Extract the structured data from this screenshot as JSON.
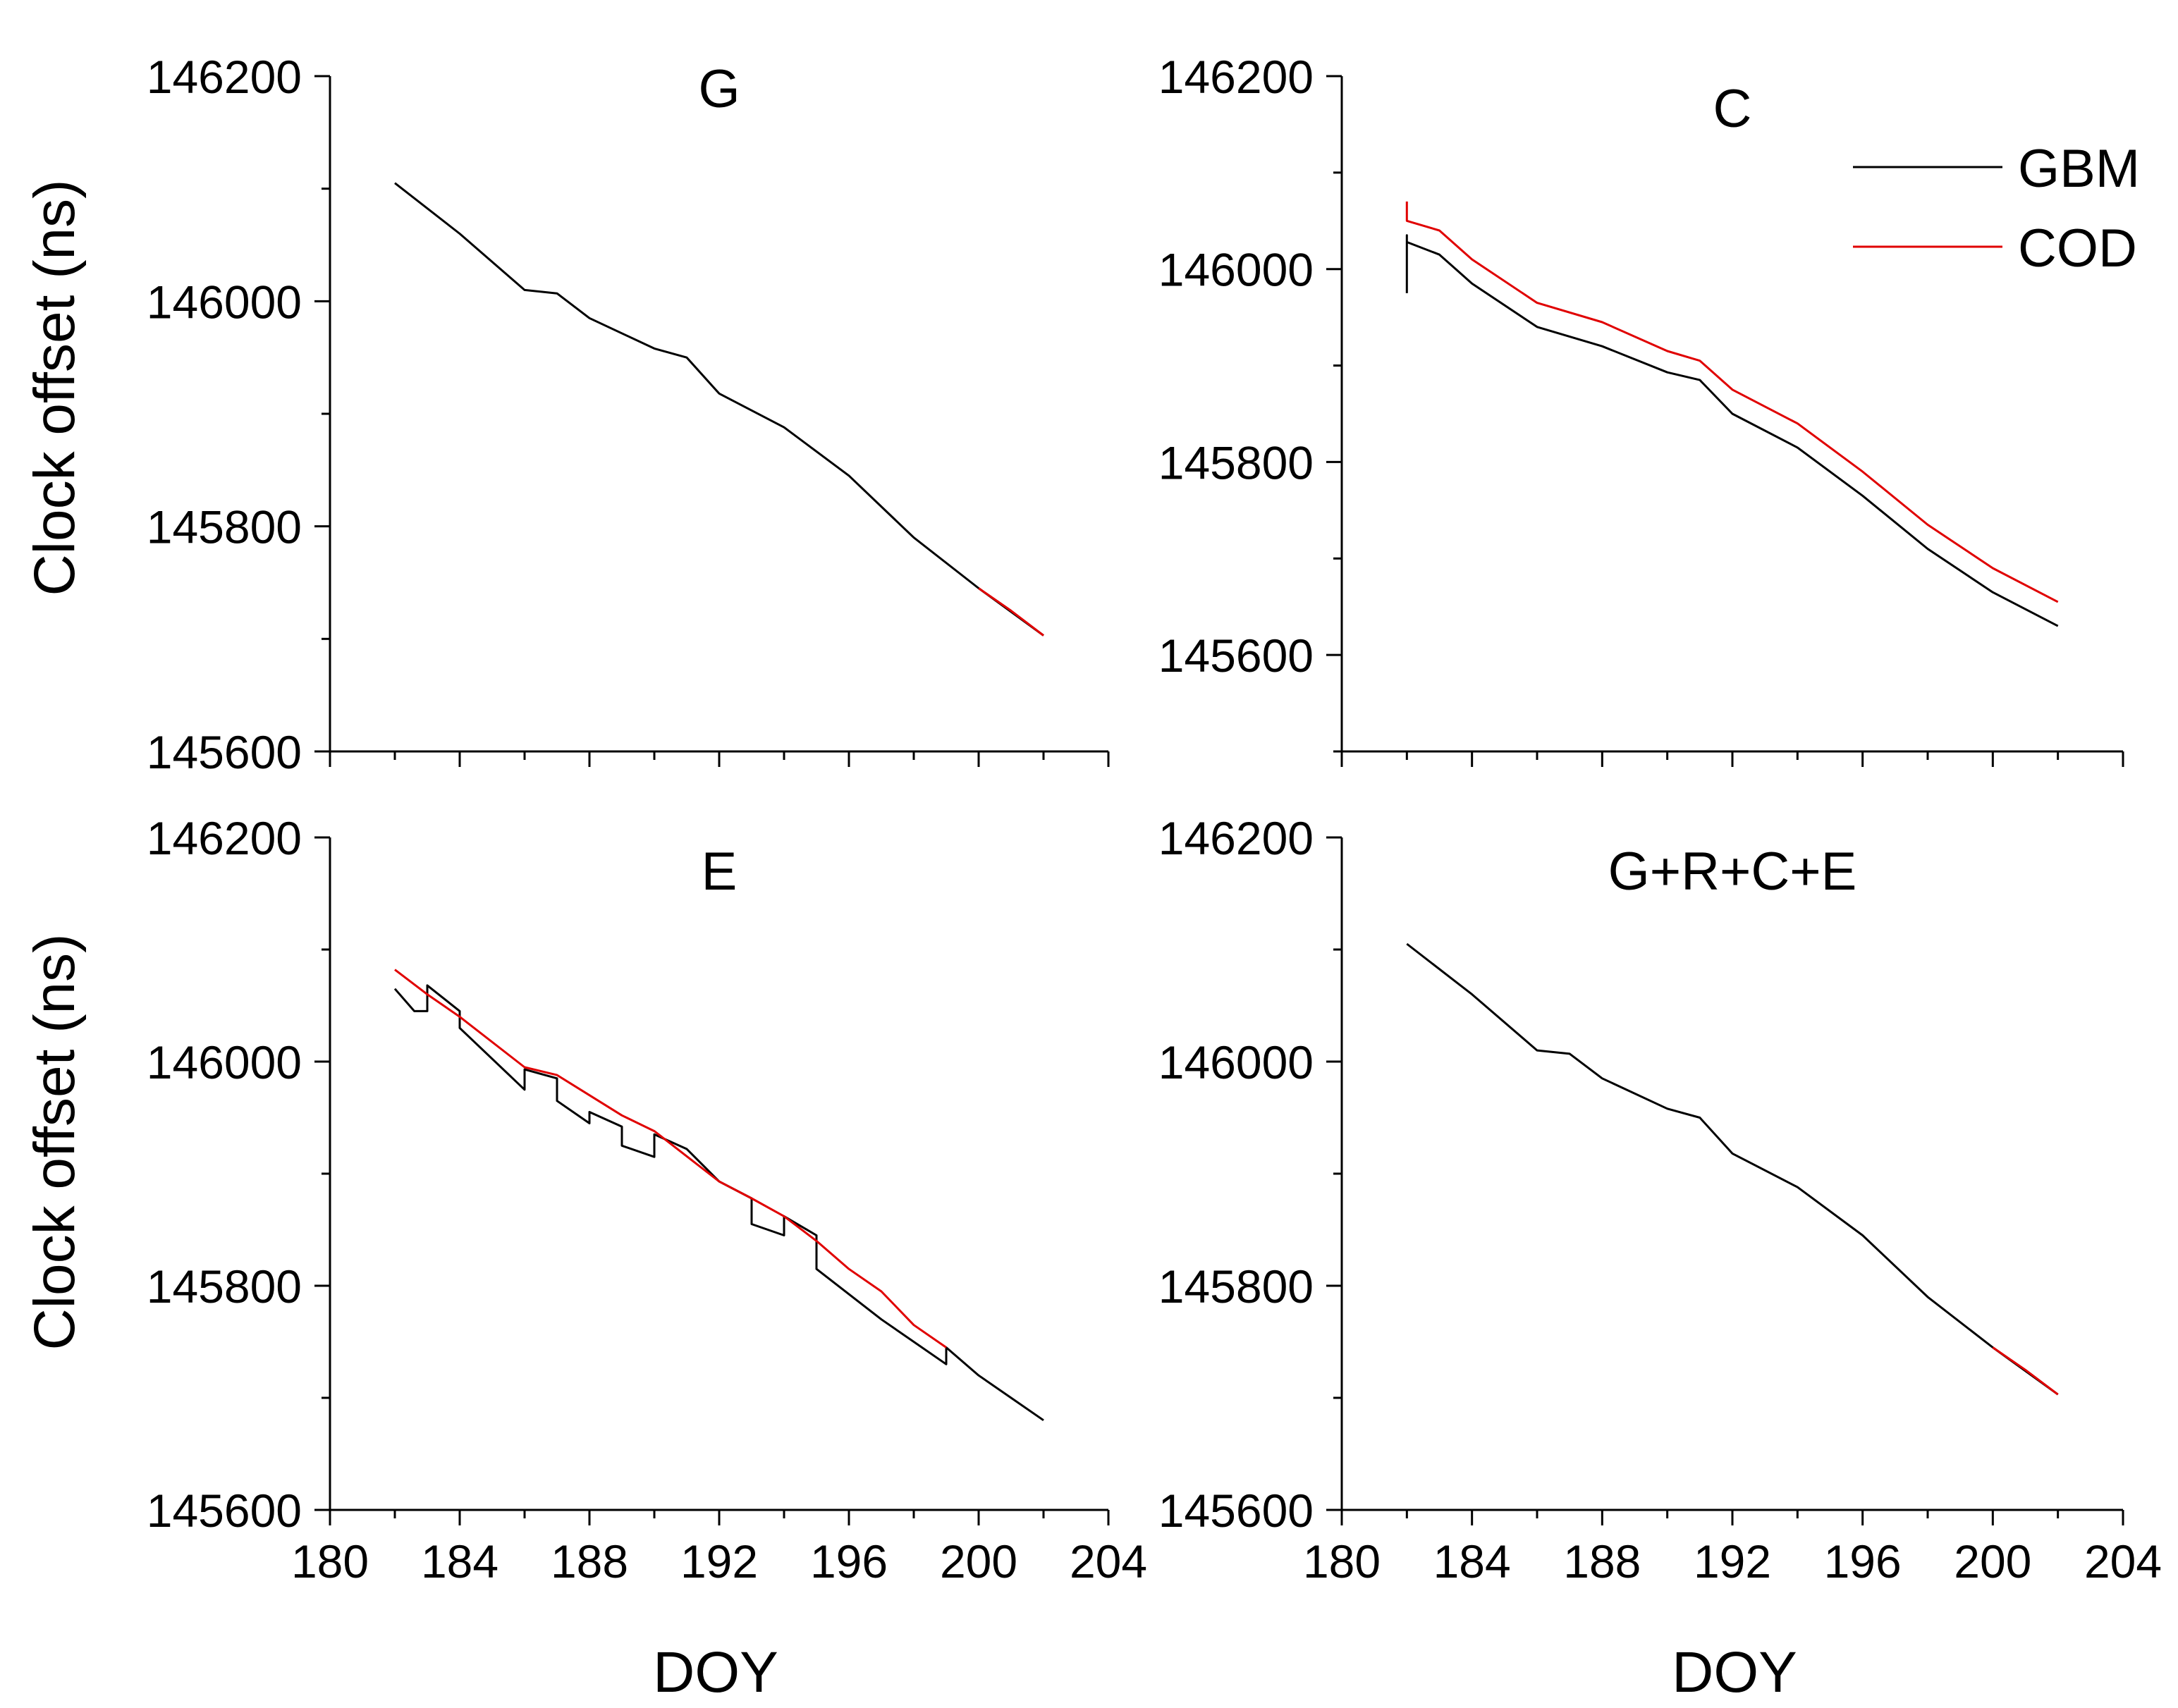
{
  "figure": {
    "ylabel": "Clock offset (ns)",
    "xlabel": "DOY"
  },
  "legend": {
    "items": [
      {
        "label": "GBM",
        "color": "#000000"
      },
      {
        "label": "COD",
        "color": "#e00000"
      }
    ]
  },
  "chart_data": [
    {
      "type": "line",
      "title": "G",
      "xlabel": "DOY",
      "ylabel": "Clock offset (ns)",
      "xlim": [
        180,
        204
      ],
      "ylim": [
        145600,
        146200
      ],
      "xticks": [
        180,
        184,
        188,
        192,
        196,
        200,
        204
      ],
      "yticks": [
        145600,
        145800,
        146000,
        146200
      ],
      "series": [
        {
          "name": "GBM",
          "color": "#000000",
          "x": [
            182,
            184,
            186,
            187,
            188,
            190,
            191,
            192,
            194,
            196,
            198,
            200,
            202
          ],
          "y": [
            146105,
            146060,
            146010,
            146007,
            145985,
            145958,
            145950,
            145918,
            145888,
            145845,
            145790,
            145745,
            145703
          ]
        },
        {
          "name": "COD",
          "color": "#e00000",
          "x": [
            200,
            201,
            202
          ],
          "y": [
            145745,
            145725,
            145703
          ]
        }
      ]
    },
    {
      "type": "line",
      "title": "C",
      "xlabel": "DOY",
      "ylabel": "Clock offset (ns)",
      "xlim": [
        180,
        204
      ],
      "ylim": [
        145500,
        146200
      ],
      "xticks": [
        180,
        184,
        188,
        192,
        196,
        200,
        204
      ],
      "yticks": [
        145600,
        145800,
        146000,
        146200
      ],
      "series": [
        {
          "name": "GBM",
          "color": "#000000",
          "x": [
            182,
            182,
            182,
            183,
            184,
            186,
            188,
            190,
            191,
            192,
            194,
            196,
            198,
            200,
            202
          ],
          "y": [
            145975,
            146035,
            146028,
            146015,
            145985,
            145940,
            145920,
            145893,
            145885,
            145850,
            145815,
            145765,
            145710,
            145665,
            145630
          ]
        },
        {
          "name": "COD",
          "color": "#e00000",
          "x": [
            182,
            182,
            183,
            184,
            186,
            188,
            190,
            191,
            192,
            194,
            196,
            198,
            200,
            202
          ],
          "y": [
            146070,
            146050,
            146040,
            146010,
            145965,
            145945,
            145915,
            145905,
            145875,
            145840,
            145790,
            145735,
            145690,
            145655
          ]
        }
      ]
    },
    {
      "type": "line",
      "title": "E",
      "xlabel": "DOY",
      "ylabel": "Clock offset (ns)",
      "xlim": [
        180,
        204
      ],
      "ylim": [
        145600,
        146200
      ],
      "xticks": [
        180,
        184,
        188,
        192,
        196,
        200,
        204
      ],
      "yticks": [
        145600,
        145800,
        146000,
        146200
      ],
      "series": [
        {
          "name": "GBM",
          "color": "#000000",
          "x": [
            182,
            182.6,
            183,
            183,
            184,
            184,
            186,
            186,
            187,
            187,
            188,
            188,
            189,
            189,
            190,
            190,
            191,
            192,
            193,
            193,
            194,
            194,
            195,
            195,
            197,
            199,
            199,
            200,
            201,
            202
          ],
          "y": [
            146065,
            146045,
            146045,
            146068,
            146045,
            146030,
            145975,
            145993,
            145985,
            145965,
            145945,
            145955,
            145942,
            145925,
            145915,
            145935,
            145922,
            145893,
            145878,
            145855,
            145845,
            145862,
            145845,
            145815,
            145770,
            145730,
            145745,
            145720,
            145700,
            145680
          ]
        },
        {
          "name": "COD",
          "color": "#e00000",
          "x": [
            182,
            183,
            184,
            186,
            187,
            188,
            189,
            190,
            192,
            193,
            194,
            195,
            196,
            197,
            198,
            199
          ],
          "y": [
            146082,
            146060,
            146040,
            145995,
            145988,
            145970,
            145952,
            145938,
            145893,
            145878,
            145862,
            145840,
            145815,
            145795,
            145765,
            145745
          ]
        }
      ]
    },
    {
      "type": "line",
      "title": "G+R+C+E",
      "xlabel": "DOY",
      "ylabel": "Clock offset (ns)",
      "xlim": [
        180,
        204
      ],
      "ylim": [
        145600,
        146200
      ],
      "xticks": [
        180,
        184,
        188,
        192,
        196,
        200,
        204
      ],
      "yticks": [
        145600,
        145800,
        146000,
        146200
      ],
      "series": [
        {
          "name": "GBM",
          "color": "#000000",
          "x": [
            182,
            184,
            186,
            187,
            188,
            190,
            191,
            192,
            194,
            196,
            198,
            200,
            202
          ],
          "y": [
            146105,
            146060,
            146010,
            146007,
            145985,
            145958,
            145950,
            145918,
            145888,
            145845,
            145790,
            145745,
            145703
          ]
        },
        {
          "name": "COD",
          "color": "#e00000",
          "x": [
            200,
            201,
            202
          ],
          "y": [
            145745,
            145725,
            145703
          ]
        }
      ]
    }
  ]
}
